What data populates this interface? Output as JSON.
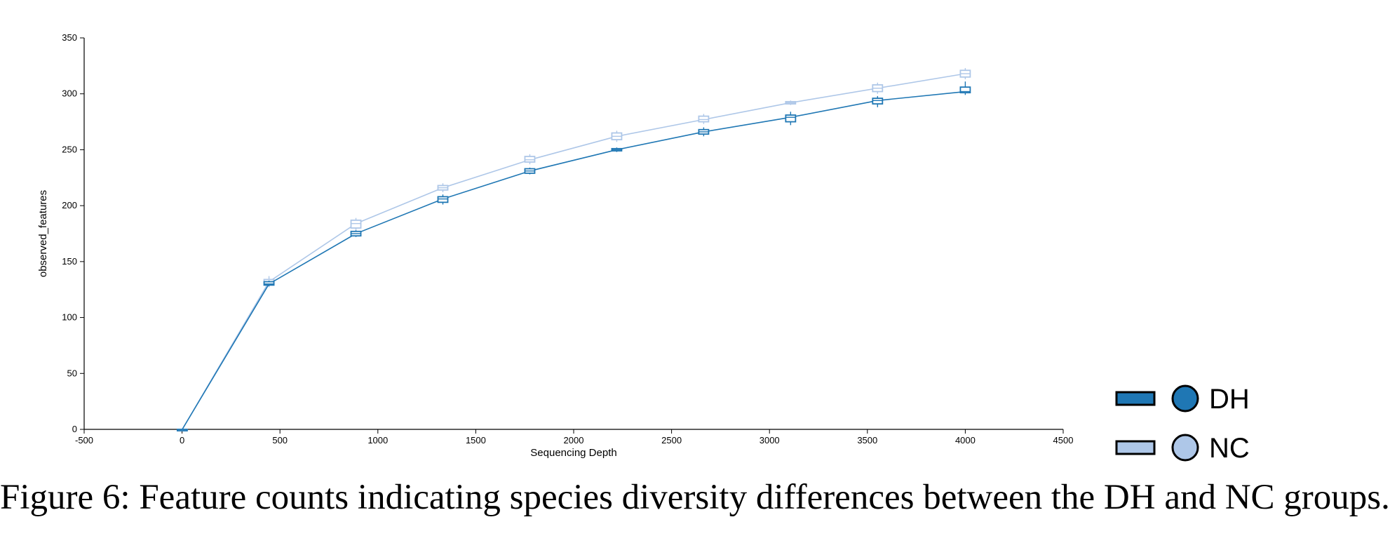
{
  "chart_data": {
    "type": "line",
    "xlabel": "Sequencing Depth",
    "ylabel": "observed_features",
    "xlim": [
      -500,
      4500
    ],
    "ylim": [
      0,
      350
    ],
    "xticks": [
      "-500",
      "0",
      "500",
      "1000",
      "1500",
      "2000",
      "2500",
      "3000",
      "3500",
      "4000",
      "4500"
    ],
    "yticks": [
      "0",
      "50",
      "100",
      "150",
      "200",
      "250",
      "300",
      "350"
    ],
    "x": [
      1,
      444,
      888,
      1332,
      1776,
      2220,
      2664,
      3108,
      3552,
      4000
    ],
    "series": [
      {
        "name": "DH",
        "color": "#1f77b4",
        "values": [
          0,
          130,
          175,
          206,
          231,
          250,
          266,
          279,
          294,
          302
        ],
        "box_low": [
          0,
          129,
          173,
          203,
          229,
          249,
          264,
          275,
          291,
          301
        ],
        "box_high": [
          0,
          132,
          177,
          208,
          233,
          251,
          268,
          281,
          296,
          306
        ],
        "whisker_low": [
          0,
          128,
          172,
          201,
          228,
          248,
          262,
          272,
          288,
          299
        ],
        "whisker_high": [
          0,
          133,
          178,
          210,
          234,
          252,
          270,
          284,
          298,
          311
        ]
      },
      {
        "name": "NC",
        "color": "#aec7e8",
        "values": [
          0,
          132,
          184,
          216,
          241,
          262,
          277,
          292,
          305,
          318
        ],
        "box_low": [
          0,
          129,
          180,
          214,
          239,
          259,
          275,
          291,
          302,
          315
        ],
        "box_high": [
          0,
          134,
          187,
          218,
          244,
          265,
          280,
          293,
          308,
          321
        ],
        "whisker_low": [
          0,
          127,
          178,
          212,
          237,
          257,
          273,
          290,
          300,
          313
        ],
        "whisker_high": [
          0,
          137,
          189,
          220,
          246,
          267,
          282,
          294,
          310,
          323
        ]
      }
    ],
    "legend_position": "bottom-right",
    "grid": false
  },
  "legend": [
    {
      "label": "DH",
      "color": "#1f77b4"
    },
    {
      "label": "NC",
      "color": "#aec7e8"
    }
  ],
  "caption": "Figure 6: Feature counts indicating species diversity differences between the DH and NC groups."
}
